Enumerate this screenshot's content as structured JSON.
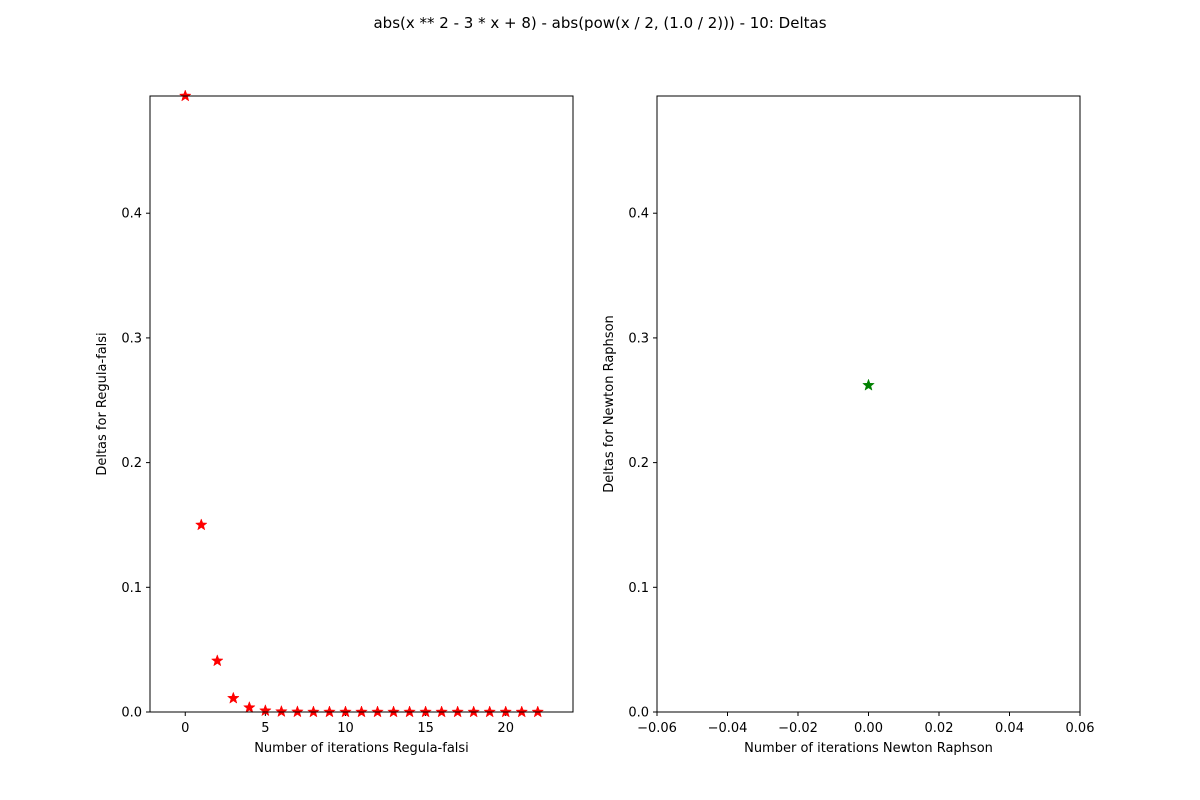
{
  "figure": {
    "suptitle": "abs(x ** 2 - 3 * x + 8) - abs(pow(x / 2, (1.0 / 2))) - 10: Deltas"
  },
  "chart_data": [
    {
      "type": "scatter",
      "xlabel": "Number of iterations Regula-falsi",
      "ylabel": "Deltas for Regula-falsi",
      "xlim": [
        -2.2,
        24.2
      ],
      "ylim": [
        0,
        0.494
      ],
      "xticks": [
        0,
        5,
        10,
        15,
        20
      ],
      "yticks": [
        0.0,
        0.1,
        0.2,
        0.3,
        0.4
      ],
      "marker": "star",
      "color": "#ff0000",
      "x": [
        0,
        1,
        2,
        3,
        4,
        5,
        6,
        7,
        8,
        9,
        10,
        11,
        12,
        13,
        14,
        15,
        16,
        17,
        18,
        19,
        20,
        21,
        22
      ],
      "y": [
        0.494,
        0.15,
        0.041,
        0.011,
        0.0035,
        0.001,
        0.0003,
        0.0001,
        0,
        0,
        0,
        0,
        0,
        0,
        0,
        0,
        0,
        0,
        0,
        0,
        0,
        0,
        0
      ],
      "grid": false,
      "legend": "none"
    },
    {
      "type": "scatter",
      "xlabel": "Number of iterations Newton Raphson",
      "ylabel": "Deltas for Newton Raphson",
      "xlim": [
        -0.06,
        0.06
      ],
      "ylim": [
        0,
        0.494
      ],
      "xticks": [
        -0.06,
        -0.04,
        -0.02,
        0.0,
        0.02,
        0.04,
        0.06
      ],
      "xticklabels": [
        "−0.06",
        "−0.04",
        "−0.02",
        "0.00",
        "0.02",
        "0.04",
        "0.06"
      ],
      "yticks": [
        0.0,
        0.1,
        0.2,
        0.3,
        0.4
      ],
      "marker": "star",
      "color": "#008000",
      "x": [
        0
      ],
      "y": [
        0.262
      ],
      "grid": false,
      "legend": "none"
    }
  ]
}
